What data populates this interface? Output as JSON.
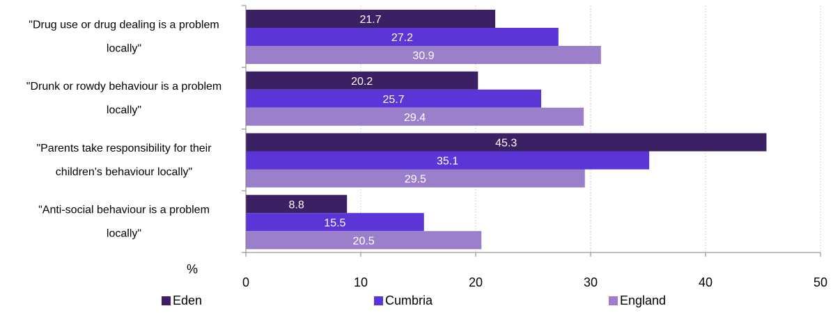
{
  "chart_data": {
    "type": "bar",
    "orientation": "horizontal",
    "categories": [
      [
        "\"Drug use or drug dealing is a problem",
        "locally\""
      ],
      [
        "\"Drunk or rowdy behaviour is a problem",
        "locally\""
      ],
      [
        "\"Parents take responsibility for their",
        "children's behaviour locally\""
      ],
      [
        "\"Anti-social behaviour is a problem",
        "locally\""
      ]
    ],
    "series": [
      {
        "name": "Eden",
        "values": [
          21.7,
          20.2,
          45.3,
          8.8
        ],
        "color": "#3b2063"
      },
      {
        "name": "Cumbria",
        "values": [
          27.2,
          25.7,
          35.1,
          15.5
        ],
        "color": "#5b35d5"
      },
      {
        "name": "England",
        "values": [
          30.9,
          29.4,
          29.5,
          20.5
        ],
        "color": "#9b7fcb"
      }
    ],
    "data_labels": [
      [
        "21.7",
        "20.2",
        "45.3",
        "8.8"
      ],
      [
        "27.2",
        "25.7",
        "35.1",
        "15.5"
      ],
      [
        "30.9",
        "29.4",
        "29.5",
        "20.5"
      ]
    ],
    "xlabel": "%",
    "xlim": [
      0,
      50
    ],
    "xticks": [
      "0",
      "10",
      "20",
      "30",
      "40",
      "50"
    ],
    "grid": true,
    "legend_position": "bottom"
  }
}
